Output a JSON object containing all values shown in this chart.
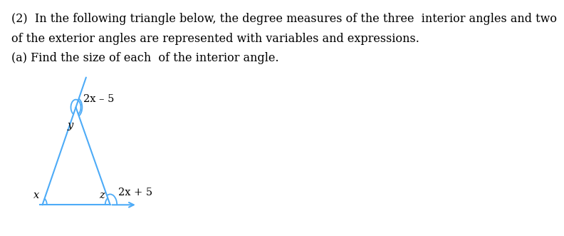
{
  "title_line1": "(2)  In the following triangle below, the degree measures of the three  interior angles and two",
  "title_line2": "of the exterior angles are represented with variables and expressions.",
  "title_line3": "(a) Find the size of each  of the interior angle.",
  "text_color": "#000000",
  "triangle_color": "#4dabf7",
  "bg_color": "#ffffff",
  "label_y": "y",
  "label_x": "x",
  "label_z": "z",
  "label_ext_top": "2x – 5",
  "label_ext_bottom": "2x + 5",
  "font_size_text": 11.5,
  "font_size_labels": 10.5
}
